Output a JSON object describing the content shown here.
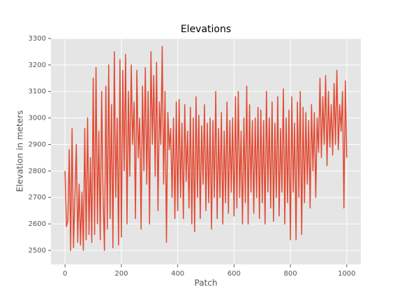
{
  "chart_data": {
    "type": "line",
    "title": "Elevations",
    "x_label": "Patch",
    "y_label": "Elevation in meters",
    "x": [
      0,
      5,
      10,
      15,
      20,
      25,
      30,
      35,
      40,
      45,
      50,
      55,
      60,
      65,
      70,
      75,
      80,
      85,
      90,
      95,
      100,
      105,
      110,
      115,
      120,
      125,
      130,
      135,
      140,
      145,
      150,
      155,
      160,
      165,
      170,
      175,
      180,
      185,
      190,
      195,
      200,
      205,
      210,
      215,
      220,
      225,
      230,
      235,
      240,
      245,
      250,
      255,
      260,
      265,
      270,
      275,
      280,
      285,
      290,
      295,
      300,
      305,
      310,
      315,
      320,
      325,
      330,
      335,
      340,
      345,
      350,
      355,
      360,
      365,
      370,
      375,
      380,
      385,
      390,
      395,
      400,
      405,
      410,
      415,
      420,
      425,
      430,
      435,
      440,
      445,
      450,
      455,
      460,
      465,
      470,
      475,
      480,
      485,
      490,
      495,
      500,
      505,
      510,
      515,
      520,
      525,
      530,
      535,
      540,
      545,
      550,
      555,
      560,
      565,
      570,
      575,
      580,
      585,
      590,
      595,
      600,
      605,
      610,
      615,
      620,
      625,
      630,
      635,
      640,
      645,
      650,
      655,
      660,
      665,
      670,
      675,
      680,
      685,
      690,
      695,
      700,
      705,
      710,
      715,
      720,
      725,
      730,
      735,
      740,
      745,
      750,
      755,
      760,
      765,
      770,
      775,
      780,
      785,
      790,
      795,
      800,
      805,
      810,
      815,
      820,
      825,
      830,
      835,
      840,
      845,
      850,
      855,
      860,
      865,
      870,
      875,
      880,
      885,
      890,
      895,
      900,
      905,
      910,
      915,
      920,
      925,
      930,
      935,
      940,
      945,
      950,
      955,
      960,
      965,
      970,
      975,
      980,
      985,
      990,
      995,
      1000
    ],
    "series": [
      {
        "name": "Elevation",
        "color": "#e24a33",
        "values": [
          2800,
          2590,
          2610,
          2880,
          2500,
          2960,
          2510,
          2700,
          2900,
          2530,
          2750,
          2520,
          2720,
          2500,
          2960,
          2540,
          3000,
          2560,
          2850,
          2530,
          3150,
          2560,
          3190,
          2600,
          2950,
          2540,
          3100,
          2700,
          2500,
          3120,
          2580,
          3200,
          2620,
          3050,
          2510,
          3250,
          2700,
          3000,
          2520,
          3220,
          2550,
          3180,
          2800,
          3240,
          2600,
          3100,
          2780,
          3200,
          2900,
          3060,
          2620,
          3180,
          2850,
          3000,
          2580,
          3120,
          2800,
          3190,
          2750,
          3100,
          2600,
          3250,
          2900,
          3160,
          2780,
          3210,
          2650,
          3060,
          2900,
          3270,
          2750,
          3100,
          2530,
          3020,
          2880,
          2960,
          2700,
          3000,
          2620,
          3060,
          2650,
          3070,
          2700,
          2980,
          2620,
          3050,
          2760,
          2950,
          2660,
          3040,
          2600,
          3000,
          2570,
          3080,
          2700,
          3010,
          2620,
          2970,
          2750,
          3050,
          2650,
          2980,
          2680,
          3000,
          2580,
          2990,
          2700,
          3100,
          2620,
          2960,
          2700,
          3020,
          2600,
          2950,
          2680,
          3060,
          2640,
          2990,
          2720,
          3000,
          2630,
          3080,
          2660,
          3100,
          2700,
          2950,
          2600,
          3000,
          2680,
          3120,
          2600,
          3050,
          2720,
          2990,
          2640,
          3000,
          2700,
          3040,
          2620,
          3030,
          2680,
          2990,
          2600,
          3100,
          2720,
          3000,
          2660,
          3060,
          2610,
          2980,
          2700,
          3080,
          2630,
          2960,
          2720,
          3110,
          2600,
          3000,
          2680,
          3030,
          2540,
          3080,
          2720,
          2980,
          2540,
          3060,
          2700,
          3100,
          2560,
          3040,
          2680,
          3020,
          2750,
          2990,
          2660,
          3050,
          2800,
          3020,
          2700,
          3000,
          2870,
          3150,
          2850,
          3080,
          2900,
          3160,
          2820,
          3100,
          2890,
          3050,
          2860,
          3130,
          2900,
          3180,
          2880,
          3050,
          2950,
          3100,
          2660,
          3140,
          2850
        ]
      }
    ],
    "xlim": [
      -50,
      1050
    ],
    "ylim": [
      2447,
      3300
    ],
    "xticks": [
      0,
      200,
      400,
      600,
      800,
      1000
    ],
    "yticks": [
      2500,
      2600,
      2700,
      2800,
      2900,
      3000,
      3100,
      3200,
      3300
    ],
    "grid": true
  }
}
